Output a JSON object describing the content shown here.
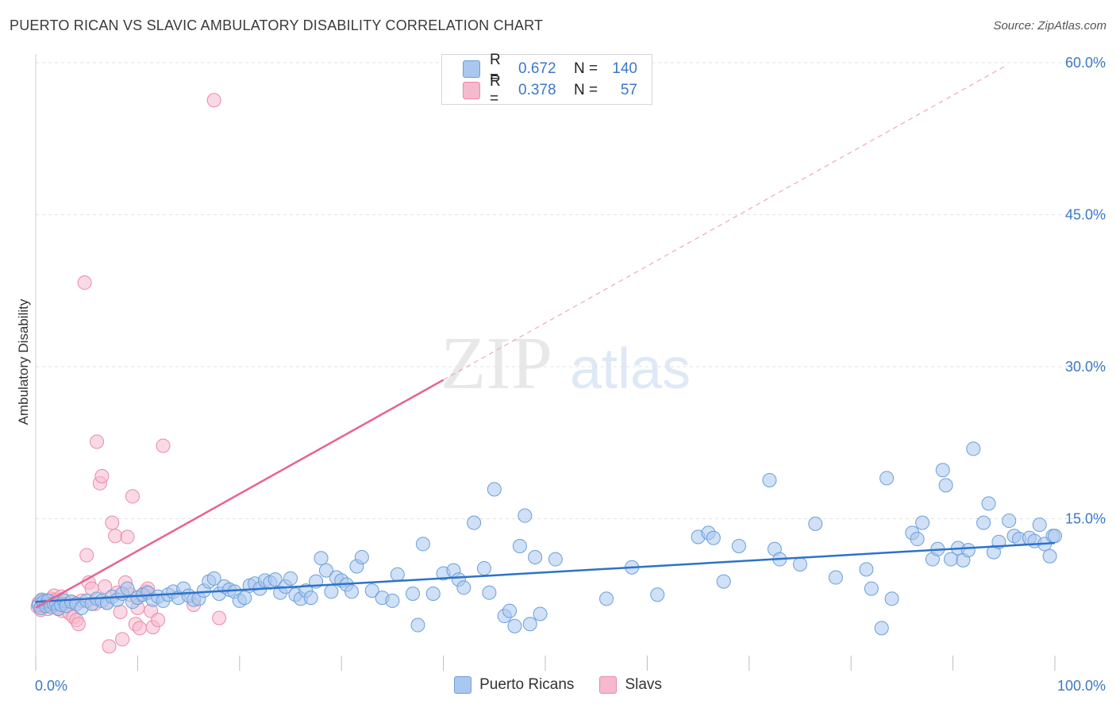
{
  "header": {
    "title": "PUERTO RICAN VS SLAVIC AMBULATORY DISABILITY CORRELATION CHART",
    "source": "Source: ZipAtlas.com"
  },
  "watermark": {
    "zip": "ZIP",
    "atlas": "atlas"
  },
  "legend_top": {
    "rows": [
      {
        "r_label": "R =",
        "r_value": "0.672",
        "n_label": "N =",
        "n_value": "140"
      },
      {
        "r_label": "R =",
        "r_value": "0.378",
        "n_label": "N =",
        "n_value": "57"
      }
    ]
  },
  "legend_bottom": {
    "items": [
      "Puerto Ricans",
      "Slavs"
    ]
  },
  "colors": {
    "blue_fill": "#a9c7ef",
    "blue_stroke": "#6a9fd8",
    "blue_line": "#2e72c9",
    "pink_fill": "#f7b9cd",
    "pink_stroke": "#ea8aa8",
    "pink_line": "#e8638f",
    "grid": "#e2e2e2",
    "tick_label": "#3a78c8"
  },
  "chart_data": {
    "type": "scatter",
    "title": "PUERTO RICAN VS SLAVIC AMBULATORY DISABILITY CORRELATION CHART",
    "xlabel": "",
    "ylabel": "Ambulatory Disability",
    "xlim": [
      0,
      100
    ],
    "ylim": [
      0,
      60
    ],
    "x_tick_labels": [
      "0.0%",
      "100.0%"
    ],
    "y_ticks": [
      15,
      30,
      45,
      60
    ],
    "y_tick_labels": [
      "15.0%",
      "30.0%",
      "45.0%",
      "60.0%"
    ],
    "series": [
      {
        "name": "Puerto Ricans",
        "r": 0.672,
        "n": 140,
        "trend": {
          "x": [
            0,
            100
          ],
          "y": [
            6.8,
            12.6
          ]
        },
        "points": [
          [
            0.3,
            6.5
          ],
          [
            0.5,
            6.2
          ],
          [
            0.6,
            7.0
          ],
          [
            0.8,
            6.8
          ],
          [
            1.0,
            6.4
          ],
          [
            1.2,
            6.9
          ],
          [
            1.5,
            6.3
          ],
          [
            1.8,
            6.6
          ],
          [
            2.0,
            6.7
          ],
          [
            2.2,
            6.1
          ],
          [
            2.5,
            6.5
          ],
          [
            2.8,
            6.9
          ],
          [
            3.0,
            6.4
          ],
          [
            3.5,
            6.8
          ],
          [
            4.0,
            6.6
          ],
          [
            4.5,
            6.2
          ],
          [
            5.0,
            6.9
          ],
          [
            5.5,
            6.6
          ],
          [
            6.0,
            7.1
          ],
          [
            6.5,
            6.9
          ],
          [
            7.0,
            6.7
          ],
          [
            7.5,
            7.3
          ],
          [
            8.0,
            7.0
          ],
          [
            8.5,
            7.6
          ],
          [
            9.0,
            8.1
          ],
          [
            9.5,
            6.8
          ],
          [
            10.0,
            7.2
          ],
          [
            10.5,
            7.5
          ],
          [
            11.0,
            7.7
          ],
          [
            11.5,
            7.0
          ],
          [
            12.0,
            7.3
          ],
          [
            12.5,
            6.9
          ],
          [
            13.0,
            7.5
          ],
          [
            13.5,
            7.8
          ],
          [
            14.0,
            7.2
          ],
          [
            14.5,
            8.1
          ],
          [
            15.0,
            7.4
          ],
          [
            15.5,
            7.0
          ],
          [
            16.0,
            7.1
          ],
          [
            16.5,
            7.9
          ],
          [
            17.0,
            8.8
          ],
          [
            17.5,
            9.1
          ],
          [
            18.0,
            7.6
          ],
          [
            18.5,
            8.3
          ],
          [
            19.0,
            8.0
          ],
          [
            19.5,
            7.8
          ],
          [
            20.0,
            6.9
          ],
          [
            20.5,
            7.2
          ],
          [
            21.0,
            8.4
          ],
          [
            21.5,
            8.6
          ],
          [
            22.0,
            8.1
          ],
          [
            22.5,
            8.9
          ],
          [
            23.0,
            8.7
          ],
          [
            23.5,
            9.0
          ],
          [
            24.0,
            7.7
          ],
          [
            24.5,
            8.3
          ],
          [
            25.0,
            9.1
          ],
          [
            25.5,
            7.5
          ],
          [
            26.0,
            7.1
          ],
          [
            26.5,
            7.9
          ],
          [
            27.0,
            7.2
          ],
          [
            27.5,
            8.8
          ],
          [
            28.0,
            11.1
          ],
          [
            28.5,
            9.9
          ],
          [
            29.0,
            7.8
          ],
          [
            29.5,
            9.2
          ],
          [
            30.0,
            8.9
          ],
          [
            30.5,
            8.5
          ],
          [
            31.0,
            7.8
          ],
          [
            31.5,
            10.3
          ],
          [
            32.0,
            11.2
          ],
          [
            33.0,
            7.9
          ],
          [
            34.0,
            7.2
          ],
          [
            35.0,
            6.9
          ],
          [
            35.5,
            9.5
          ],
          [
            37.0,
            7.6
          ],
          [
            37.5,
            4.5
          ],
          [
            38.0,
            12.5
          ],
          [
            39.0,
            7.6
          ],
          [
            40.0,
            9.6
          ],
          [
            41.0,
            9.9
          ],
          [
            41.5,
            9.0
          ],
          [
            42.0,
            8.2
          ],
          [
            43.0,
            14.6
          ],
          [
            44.0,
            10.1
          ],
          [
            44.5,
            7.7
          ],
          [
            45.0,
            17.9
          ],
          [
            46.0,
            5.4
          ],
          [
            46.5,
            5.9
          ],
          [
            47.0,
            4.4
          ],
          [
            47.5,
            12.3
          ],
          [
            48.0,
            15.3
          ],
          [
            48.5,
            4.6
          ],
          [
            49.0,
            11.2
          ],
          [
            49.5,
            5.6
          ],
          [
            51.0,
            11.0
          ],
          [
            56.0,
            7.1
          ],
          [
            58.5,
            10.2
          ],
          [
            61.0,
            7.5
          ],
          [
            65.0,
            13.2
          ],
          [
            66.0,
            13.6
          ],
          [
            66.5,
            13.1
          ],
          [
            67.5,
            8.8
          ],
          [
            69.0,
            12.3
          ],
          [
            72.0,
            18.8
          ],
          [
            72.5,
            12.0
          ],
          [
            73.0,
            11.0
          ],
          [
            75.0,
            10.5
          ],
          [
            76.5,
            14.5
          ],
          [
            78.5,
            9.2
          ],
          [
            81.5,
            10.0
          ],
          [
            82.0,
            8.1
          ],
          [
            83.0,
            4.2
          ],
          [
            83.5,
            19.0
          ],
          [
            84.0,
            7.1
          ],
          [
            86.0,
            13.6
          ],
          [
            86.5,
            13.0
          ],
          [
            87.0,
            14.6
          ],
          [
            88.0,
            11.0
          ],
          [
            88.5,
            12.0
          ],
          [
            89.0,
            19.8
          ],
          [
            89.3,
            18.3
          ],
          [
            89.8,
            11.0
          ],
          [
            90.5,
            12.1
          ],
          [
            91.0,
            10.9
          ],
          [
            91.5,
            11.9
          ],
          [
            92.0,
            21.9
          ],
          [
            93.0,
            14.6
          ],
          [
            93.5,
            16.5
          ],
          [
            94.0,
            11.7
          ],
          [
            94.5,
            12.7
          ],
          [
            95.5,
            14.8
          ],
          [
            96.0,
            13.3
          ],
          [
            96.5,
            13.0
          ],
          [
            97.5,
            13.1
          ],
          [
            98.0,
            12.8
          ],
          [
            98.5,
            14.4
          ],
          [
            99.0,
            12.5
          ],
          [
            99.5,
            11.3
          ],
          [
            99.8,
            13.3
          ],
          [
            100,
            13.3
          ]
        ]
      },
      {
        "name": "Slavs",
        "r": 0.378,
        "n": 57,
        "trend": {
          "x": [
            0,
            40
          ],
          "y": [
            6.2,
            28.7
          ]
        },
        "trend_extension": {
          "x": [
            40,
            95
          ],
          "y": [
            28.7,
            59.6
          ]
        },
        "points": [
          [
            0.2,
            6.3
          ],
          [
            0.3,
            6.7
          ],
          [
            0.5,
            6.0
          ],
          [
            0.6,
            6.9
          ],
          [
            0.8,
            6.4
          ],
          [
            1.0,
            6.6
          ],
          [
            1.2,
            6.1
          ],
          [
            1.4,
            6.8
          ],
          [
            1.5,
            7.1
          ],
          [
            1.6,
            6.5
          ],
          [
            1.8,
            7.4
          ],
          [
            2.0,
            7.0
          ],
          [
            2.2,
            6.2
          ],
          [
            2.3,
            6.8
          ],
          [
            2.5,
            7.3
          ],
          [
            2.6,
            5.9
          ],
          [
            2.8,
            6.6
          ],
          [
            3.0,
            6.4
          ],
          [
            3.3,
            5.7
          ],
          [
            3.5,
            6.8
          ],
          [
            3.7,
            5.3
          ],
          [
            4.0,
            5.0
          ],
          [
            4.2,
            4.6
          ],
          [
            4.5,
            6.9
          ],
          [
            4.8,
            38.3
          ],
          [
            5.0,
            11.4
          ],
          [
            5.2,
            8.7
          ],
          [
            5.5,
            8.1
          ],
          [
            5.8,
            6.6
          ],
          [
            6.0,
            22.6
          ],
          [
            6.3,
            18.5
          ],
          [
            6.5,
            19.2
          ],
          [
            6.8,
            8.3
          ],
          [
            7.0,
            6.7
          ],
          [
            7.2,
            2.4
          ],
          [
            7.5,
            14.6
          ],
          [
            7.8,
            13.3
          ],
          [
            8.0,
            7.7
          ],
          [
            8.3,
            5.8
          ],
          [
            8.5,
            3.1
          ],
          [
            8.8,
            8.7
          ],
          [
            9.0,
            13.2
          ],
          [
            9.3,
            7.5
          ],
          [
            9.5,
            17.2
          ],
          [
            9.8,
            4.6
          ],
          [
            10.0,
            6.2
          ],
          [
            10.2,
            4.2
          ],
          [
            10.5,
            7.5
          ],
          [
            10.8,
            7.8
          ],
          [
            11.0,
            8.1
          ],
          [
            11.3,
            5.9
          ],
          [
            11.5,
            4.3
          ],
          [
            12.0,
            5.0
          ],
          [
            12.5,
            22.2
          ],
          [
            15.5,
            6.5
          ],
          [
            17.5,
            56.3
          ],
          [
            18.0,
            5.2
          ]
        ]
      }
    ]
  }
}
